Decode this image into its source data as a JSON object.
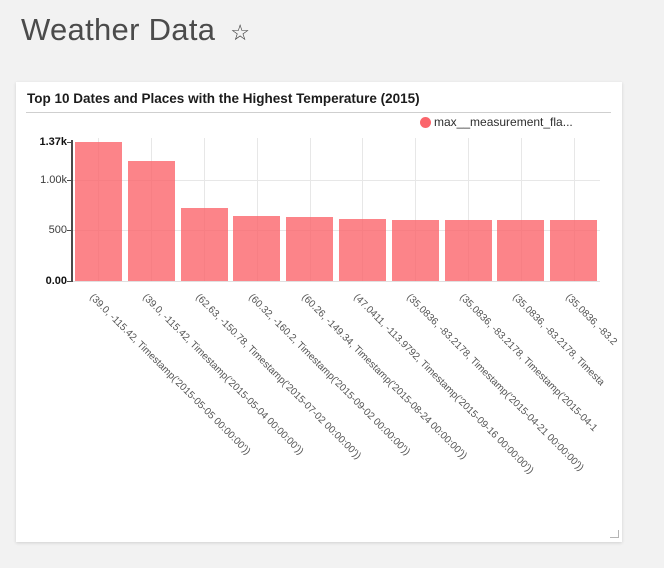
{
  "page": {
    "title": "Weather Data",
    "favorite_icon": "☆"
  },
  "card": {
    "title": "Top 10 Dates and Places with the Highest Temperature (2015)",
    "legend": {
      "label": "max__measurement_fla...",
      "color": "#fb656b"
    }
  },
  "chart_data": {
    "type": "bar",
    "title": "Top 10 Dates and Places with the Highest Temperature (2015)",
    "legend_entries": [
      "max__measurement_fla..."
    ],
    "legend_position": "top-right",
    "bar_color": "#fb656b",
    "bar_opacity": 0.8,
    "grid": true,
    "x_label_rotation_deg": 45,
    "categories": [
      "(39.0, -115.42, Timestamp('2015-05-05 00:00:00'))",
      "(39.0, -115.42, Timestamp('2015-05-04 00:00:00'))",
      "(62.63, -150.78, Timestamp('2015-07-02 00:00:00'))",
      "(60.32, -160.2, Timestamp('2015-09-02 00:00:00'))",
      "(60.26, -149.34, Timestamp('2015-08-24 00:00:00'))",
      "(47.0411, -113.9792, Timestamp('2015-09-16 00:00:00'))",
      "(35.0836, -83.2178, Timestamp('2015-04-21 00:00:00'))",
      "(35.0836, -83.2178, Timestamp('2015-04-1",
      "(35.0836, -83.2178, Timesta",
      "(35.0836, -83.2"
    ],
    "series": [
      {
        "name": "max__measurement_fla...",
        "values": [
          1370,
          1180,
          720,
          640,
          635,
          610,
          605,
          605,
          605,
          605
        ]
      }
    ],
    "xlabel": "",
    "ylabel": "",
    "ylim": [
      0,
      1370
    ],
    "yticks": [
      {
        "label": "1.37k",
        "value": 1370,
        "bold": true
      },
      {
        "label": "1.00k",
        "value": 1000,
        "bold": false
      },
      {
        "label": "500",
        "value": 500,
        "bold": false
      },
      {
        "label": "0.00",
        "value": 0,
        "bold": true
      }
    ]
  }
}
